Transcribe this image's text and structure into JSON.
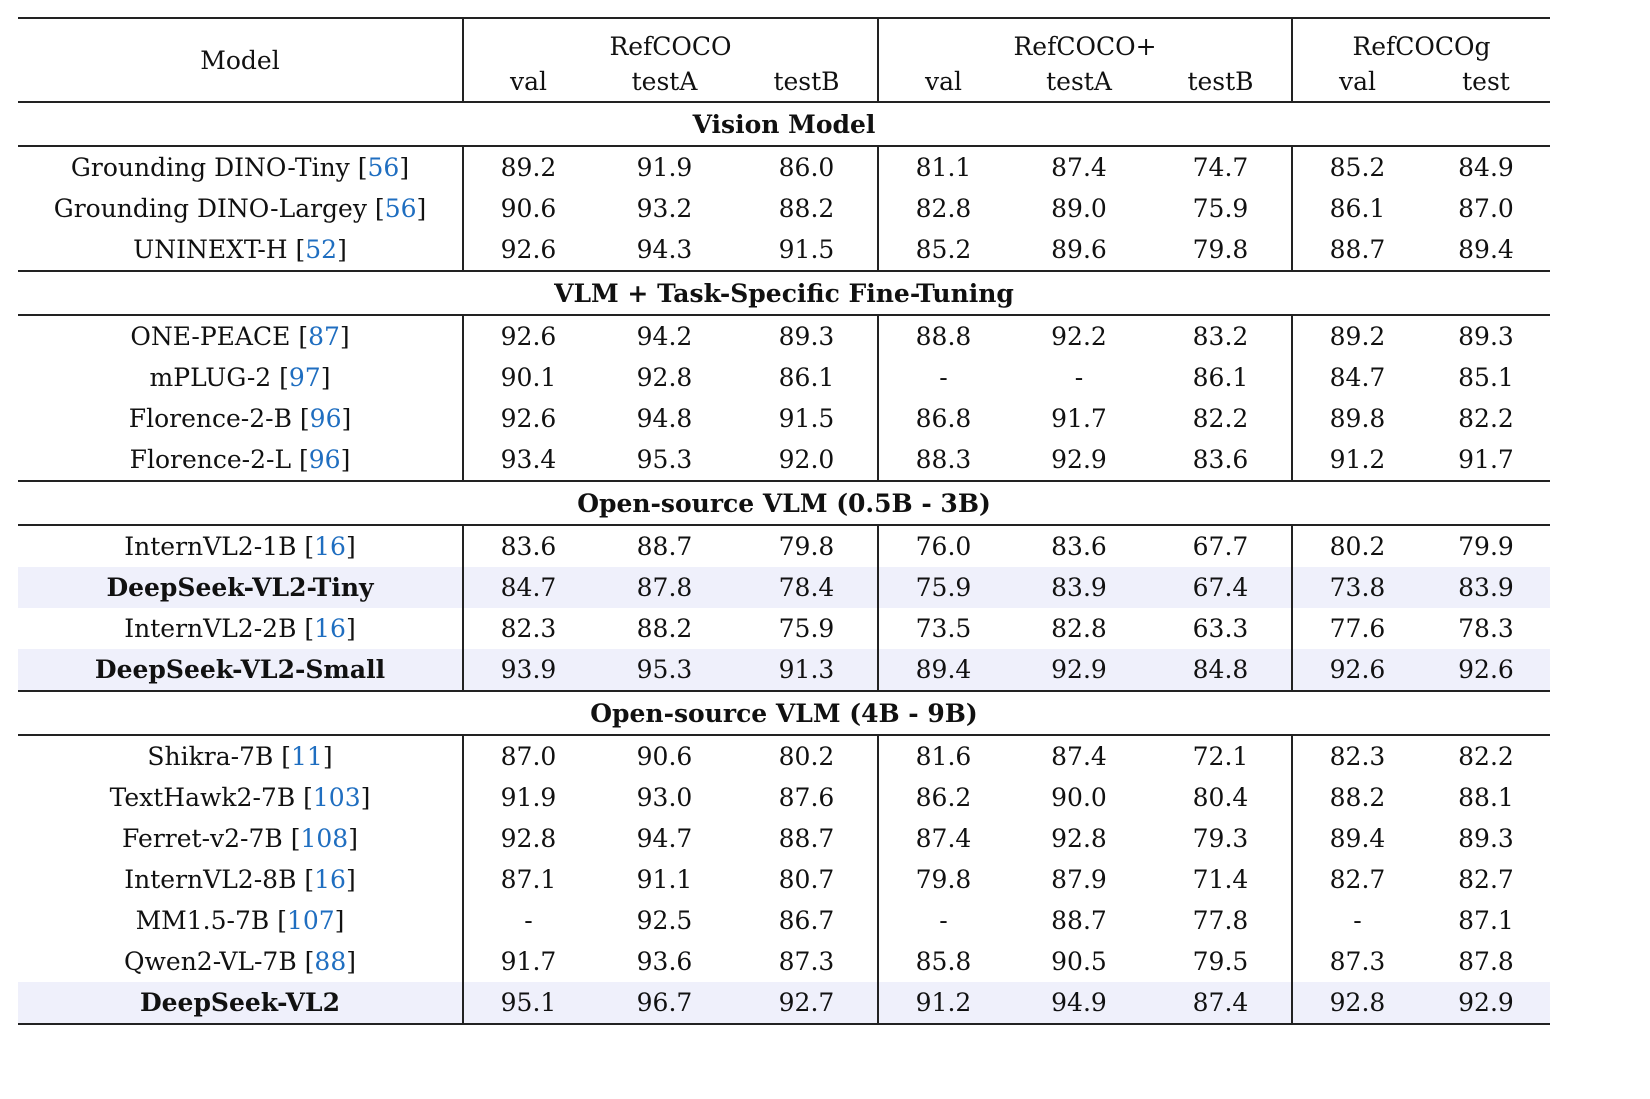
{
  "header": {
    "model": "Model",
    "groups": [
      "RefCOCO",
      "RefCOCO+",
      "RefCOCOg"
    ],
    "subcols": [
      "val",
      "testA",
      "testB",
      "val",
      "testA",
      "testB",
      "val",
      "test"
    ]
  },
  "sections": [
    {
      "title": "Vision Model",
      "rows": [
        {
          "name": "Grounding DINO-Tiny",
          "cite": "56",
          "values": [
            "89.2",
            "91.9",
            "86.0",
            "81.1",
            "87.4",
            "74.7",
            "85.2",
            "84.9"
          ]
        },
        {
          "name": "Grounding DINO-Largey",
          "cite": "56",
          "values": [
            "90.6",
            "93.2",
            "88.2",
            "82.8",
            "89.0",
            "75.9",
            "86.1",
            "87.0"
          ]
        },
        {
          "name": "UNINEXT-H",
          "cite": "52",
          "values": [
            "92.6",
            "94.3",
            "91.5",
            "85.2",
            "89.6",
            "79.8",
            "88.7",
            "89.4"
          ]
        }
      ]
    },
    {
      "title": "VLM + Task-Specific Fine-Tuning",
      "rows": [
        {
          "name": "ONE-PEACE",
          "cite": "87",
          "values": [
            "92.6",
            "94.2",
            "89.3",
            "88.8",
            "92.2",
            "83.2",
            "89.2",
            "89.3"
          ]
        },
        {
          "name": "mPLUG-2",
          "cite": "97",
          "values": [
            "90.1",
            "92.8",
            "86.1",
            "-",
            "-",
            "86.1",
            "84.7",
            "85.1"
          ]
        },
        {
          "name": "Florence-2-B",
          "cite": "96",
          "values": [
            "92.6",
            "94.8",
            "91.5",
            "86.8",
            "91.7",
            "82.2",
            "89.8",
            "82.2"
          ]
        },
        {
          "name": "Florence-2-L",
          "cite": "96",
          "values": [
            "93.4",
            "95.3",
            "92.0",
            "88.3",
            "92.9",
            "83.6",
            "91.2",
            "91.7"
          ]
        }
      ]
    },
    {
      "title": "Open-source VLM (0.5B - 3B)",
      "rows": [
        {
          "name": "InternVL2-1B",
          "cite": "16",
          "values": [
            "83.6",
            "88.7",
            "79.8",
            "76.0",
            "83.6",
            "67.7",
            "80.2",
            "79.9"
          ]
        },
        {
          "name": "DeepSeek-VL2-Tiny",
          "cite": "",
          "highlight": true,
          "values": [
            "84.7",
            "87.8",
            "78.4",
            "75.9",
            "83.9",
            "67.4",
            "73.8",
            "83.9"
          ]
        },
        {
          "name": "InternVL2-2B",
          "cite": "16",
          "values": [
            "82.3",
            "88.2",
            "75.9",
            "73.5",
            "82.8",
            "63.3",
            "77.6",
            "78.3"
          ]
        },
        {
          "name": "DeepSeek-VL2-Small",
          "cite": "",
          "highlight": true,
          "values": [
            "93.9",
            "95.3",
            "91.3",
            "89.4",
            "92.9",
            "84.8",
            "92.6",
            "92.6"
          ]
        }
      ]
    },
    {
      "title": "Open-source VLM (4B - 9B)",
      "rows": [
        {
          "name": "Shikra-7B",
          "cite": "11",
          "values": [
            "87.0",
            "90.6",
            "80.2",
            "81.6",
            "87.4",
            "72.1",
            "82.3",
            "82.2"
          ]
        },
        {
          "name": "TextHawk2-7B",
          "cite": "103",
          "values": [
            "91.9",
            "93.0",
            "87.6",
            "86.2",
            "90.0",
            "80.4",
            "88.2",
            "88.1"
          ]
        },
        {
          "name": "Ferret-v2-7B",
          "cite": "108",
          "values": [
            "92.8",
            "94.7",
            "88.7",
            "87.4",
            "92.8",
            "79.3",
            "89.4",
            "89.3"
          ]
        },
        {
          "name": "InternVL2-8B",
          "cite": "16",
          "values": [
            "87.1",
            "91.1",
            "80.7",
            "79.8",
            "87.9",
            "71.4",
            "82.7",
            "82.7"
          ]
        },
        {
          "name": "MM1.5-7B",
          "cite": "107",
          "values": [
            "-",
            "92.5",
            "86.7",
            "-",
            "88.7",
            "77.8",
            "-",
            "87.1"
          ]
        },
        {
          "name": "Qwen2-VL-7B",
          "cite": "88",
          "values": [
            "91.7",
            "93.6",
            "87.3",
            "85.8",
            "90.5",
            "79.5",
            "87.3",
            "87.8"
          ]
        },
        {
          "name": "DeepSeek-VL2",
          "cite": "",
          "highlight": true,
          "values": [
            "95.1",
            "96.7",
            "92.7",
            "91.2",
            "94.9",
            "87.4",
            "92.8",
            "92.9"
          ]
        }
      ]
    }
  ]
}
